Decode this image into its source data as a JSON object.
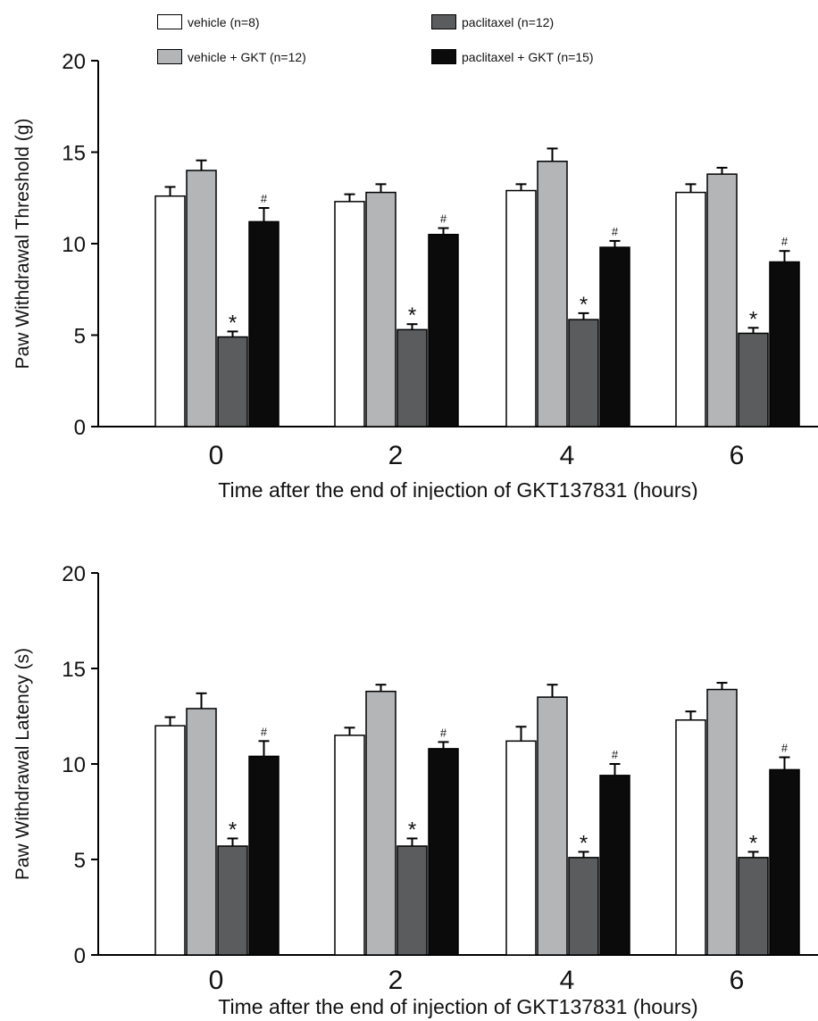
{
  "legend": {
    "items": [
      {
        "label": "vehicle (n=8)",
        "color": "#ffffff"
      },
      {
        "label": "paclitaxel (n=12)",
        "color": "#5a5c5e"
      },
      {
        "label": "vehicle + GKT (n=12)",
        "color": "#b3b5b7"
      },
      {
        "label": "paclitaxel + GKT (n=15)",
        "color": "#0b0b0b"
      }
    ]
  },
  "chart_data": [
    {
      "type": "bar",
      "ylabel": "Paw Withdrawal Threshold (g)",
      "xlabel": "Time after the end of injection of GKT137831 (hours)",
      "categories": [
        "0",
        "2",
        "4",
        "6"
      ],
      "ylim": [
        0,
        20
      ],
      "yticks": [
        0,
        5,
        10,
        15,
        20
      ],
      "series": [
        {
          "name": "vehicle (n=8)",
          "color": "#ffffff",
          "values": [
            12.6,
            12.3,
            12.9,
            12.8
          ],
          "errors": [
            0.5,
            0.4,
            0.35,
            0.45
          ],
          "marks": [
            "",
            "",
            "",
            ""
          ]
        },
        {
          "name": "vehicle + GKT (n=12)",
          "color": "#b3b5b7",
          "values": [
            14.0,
            12.8,
            14.5,
            13.8
          ],
          "errors": [
            0.55,
            0.45,
            0.7,
            0.35
          ],
          "marks": [
            "",
            "",
            "",
            ""
          ]
        },
        {
          "name": "paclitaxel (n=12)",
          "color": "#5a5c5e",
          "values": [
            4.9,
            5.3,
            5.85,
            5.1
          ],
          "errors": [
            0.3,
            0.3,
            0.35,
            0.3
          ],
          "marks": [
            "*",
            "*",
            "*",
            "*"
          ]
        },
        {
          "name": "paclitaxel + GKT (n=15)",
          "color": "#0b0b0b",
          "values": [
            11.2,
            10.5,
            9.8,
            9.0
          ],
          "errors": [
            0.75,
            0.35,
            0.35,
            0.6
          ],
          "marks": [
            "#",
            "#",
            "#",
            "#"
          ]
        }
      ]
    },
    {
      "type": "bar",
      "ylabel": "Paw Withdrawal Latency (s)",
      "xlabel": "Time after the end of injection of GKT137831 (hours)",
      "categories": [
        "0",
        "2",
        "4",
        "6"
      ],
      "ylim": [
        0,
        20
      ],
      "yticks": [
        0,
        5,
        10,
        15,
        20
      ],
      "series": [
        {
          "name": "vehicle (n=8)",
          "color": "#ffffff",
          "values": [
            12.0,
            11.5,
            11.2,
            12.3
          ],
          "errors": [
            0.45,
            0.4,
            0.75,
            0.45
          ],
          "marks": [
            "",
            "",
            "",
            ""
          ]
        },
        {
          "name": "vehicle + GKT (n=12)",
          "color": "#b3b5b7",
          "values": [
            12.9,
            13.8,
            13.5,
            13.9
          ],
          "errors": [
            0.8,
            0.35,
            0.65,
            0.35
          ],
          "marks": [
            "",
            "",
            "",
            ""
          ]
        },
        {
          "name": "paclitaxel (n=12)",
          "color": "#5a5c5e",
          "values": [
            5.7,
            5.7,
            5.1,
            5.1
          ],
          "errors": [
            0.4,
            0.4,
            0.3,
            0.3
          ],
          "marks": [
            "*",
            "*",
            "*",
            "*"
          ]
        },
        {
          "name": "paclitaxel + GKT (n=15)",
          "color": "#0b0b0b",
          "values": [
            10.4,
            10.8,
            9.4,
            9.7
          ],
          "errors": [
            0.8,
            0.35,
            0.6,
            0.65
          ],
          "marks": [
            "#",
            "#",
            "#",
            "#"
          ]
        }
      ]
    }
  ]
}
